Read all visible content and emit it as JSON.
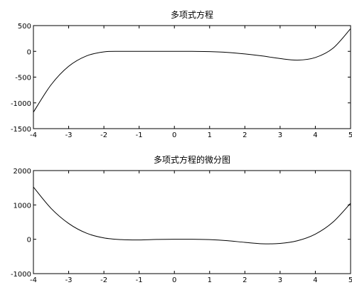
{
  "chart_data": [
    {
      "type": "line",
      "title": "多项式方程",
      "xlabel": "",
      "ylabel": "",
      "xlim": [
        -4,
        5
      ],
      "ylim": [
        -1500,
        500
      ],
      "xticks": [
        -4,
        -3,
        -2,
        -1,
        0,
        1,
        2,
        3,
        4,
        5
      ],
      "yticks": [
        -1500,
        -1000,
        -500,
        0,
        500
      ],
      "grid": false,
      "series": [
        {
          "color": "#000000",
          "x": [
            -4.0,
            -3.5,
            -3.0,
            -2.5,
            -2.0,
            -1.5,
            -1.0,
            -0.5,
            0.0,
            0.5,
            1.0,
            1.5,
            2.0,
            2.5,
            3.0,
            3.5,
            4.0,
            4.5,
            5.0
          ],
          "y": [
            -1180,
            -650,
            -290,
            -90,
            -10,
            0,
            0,
            0,
            0,
            0,
            -5,
            -20,
            -50,
            -90,
            -140,
            -170,
            -120,
            60,
            440
          ]
        }
      ]
    },
    {
      "type": "line",
      "title": "多项式方程的微分图",
      "xlabel": "",
      "ylabel": "",
      "xlim": [
        -4,
        5
      ],
      "ylim": [
        -1000,
        2000
      ],
      "xticks": [
        -4,
        -3,
        -2,
        -1,
        0,
        1,
        2,
        3,
        4,
        5
      ],
      "yticks": [
        -1000,
        0,
        1000,
        2000
      ],
      "grid": false,
      "series": [
        {
          "color": "#000000",
          "x": [
            -4.0,
            -3.5,
            -3.0,
            -2.5,
            -2.0,
            -1.5,
            -1.0,
            -0.5,
            0.0,
            0.5,
            1.0,
            1.5,
            2.0,
            2.5,
            3.0,
            3.5,
            4.0,
            4.5,
            5.0
          ],
          "y": [
            1520,
            900,
            460,
            180,
            40,
            -10,
            -20,
            -5,
            0,
            0,
            -10,
            -40,
            -90,
            -130,
            -120,
            -40,
            150,
            500,
            1050
          ]
        }
      ]
    }
  ]
}
